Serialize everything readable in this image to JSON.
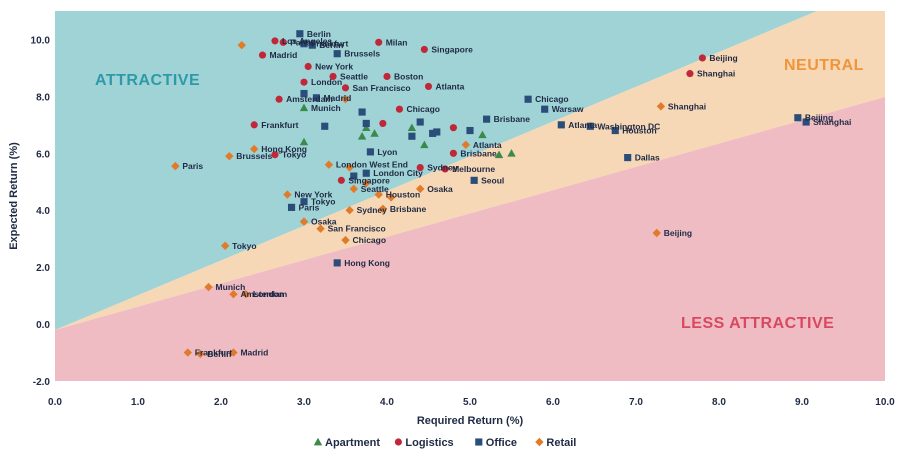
{
  "chart_data": {
    "type": "scatter",
    "title": "",
    "xlabel": "Required Return (%)",
    "ylabel": "Expected Return (%)",
    "xlim": [
      0,
      10
    ],
    "ylim": [
      -2,
      11
    ],
    "x_ticks": [
      "0.0",
      "1.0",
      "2.0",
      "3.0",
      "4.0",
      "5.0",
      "6.0",
      "7.0",
      "8.0",
      "9.0",
      "10.0"
    ],
    "y_ticks": [
      "-2.0",
      "0.0",
      "2.0",
      "4.0",
      "6.0",
      "8.0",
      "10.0"
    ],
    "grid": false,
    "legend_position": "bottom-center",
    "zones": [
      {
        "name": "ATTRACTIVE",
        "color": "#2e9aa8"
      },
      {
        "name": "NEUTRAL",
        "color": "#f0953a"
      },
      {
        "name": "LESS ATTRACTIVE",
        "color": "#d94860"
      }
    ],
    "series": [
      {
        "name": "Apartment",
        "color": "#3a8a4a",
        "marker": "triangle",
        "points": [
          {
            "x": 3.0,
            "y": 7.6,
            "label": "Munich"
          },
          {
            "x": 3.0,
            "y": 6.4,
            "label": ""
          },
          {
            "x": 3.7,
            "y": 6.6,
            "label": ""
          },
          {
            "x": 3.75,
            "y": 6.9,
            "label": ""
          },
          {
            "x": 3.85,
            "y": 6.7,
            "label": ""
          },
          {
            "x": 4.3,
            "y": 6.9,
            "label": ""
          },
          {
            "x": 4.45,
            "y": 6.3,
            "label": ""
          },
          {
            "x": 5.15,
            "y": 6.65,
            "label": ""
          },
          {
            "x": 5.35,
            "y": 5.95,
            "label": ""
          },
          {
            "x": 5.5,
            "y": 6.0,
            "label": ""
          }
        ]
      },
      {
        "name": "Logistics",
        "color": "#c0283a",
        "marker": "circle",
        "points": [
          {
            "x": 2.65,
            "y": 9.95,
            "label": "Los Angeles"
          },
          {
            "x": 2.75,
            "y": 9.9,
            "label": "Paris"
          },
          {
            "x": 2.5,
            "y": 9.45,
            "label": "Madrid"
          },
          {
            "x": 3.9,
            "y": 9.9,
            "label": "Milan"
          },
          {
            "x": 4.45,
            "y": 9.65,
            "label": "Singapore"
          },
          {
            "x": 3.05,
            "y": 9.05,
            "label": "New York"
          },
          {
            "x": 3.35,
            "y": 8.7,
            "label": "Seattle"
          },
          {
            "x": 4.0,
            "y": 8.7,
            "label": "Boston"
          },
          {
            "x": 3.0,
            "y": 8.5,
            "label": "London"
          },
          {
            "x": 3.5,
            "y": 8.3,
            "label": "San Francisco"
          },
          {
            "x": 4.5,
            "y": 8.35,
            "label": "Atlanta"
          },
          {
            "x": 2.7,
            "y": 7.9,
            "label": "Amsterdam"
          },
          {
            "x": 4.15,
            "y": 7.55,
            "label": "Chicago"
          },
          {
            "x": 2.4,
            "y": 7.0,
            "label": "Frankfurt"
          },
          {
            "x": 3.95,
            "y": 7.05,
            "label": ""
          },
          {
            "x": 4.8,
            "y": 6.9,
            "label": ""
          },
          {
            "x": 4.8,
            "y": 6.0,
            "label": "Brisbane"
          },
          {
            "x": 4.7,
            "y": 5.45,
            "label": "Melbourne"
          },
          {
            "x": 4.4,
            "y": 5.5,
            "label": "Sydney"
          },
          {
            "x": 2.65,
            "y": 5.95,
            "label": "Tokyo"
          },
          {
            "x": 3.45,
            "y": 5.05,
            "label": "Singapore"
          },
          {
            "x": 7.8,
            "y": 9.35,
            "label": "Beijing"
          },
          {
            "x": 7.65,
            "y": 8.8,
            "label": "Shanghai"
          }
        ]
      },
      {
        "name": "Office",
        "color": "#2a4d7a",
        "marker": "square",
        "points": [
          {
            "x": 2.95,
            "y": 10.2,
            "label": "Berlin"
          },
          {
            "x": 3.0,
            "y": 9.85,
            "label": "Frankfurt"
          },
          {
            "x": 3.1,
            "y": 9.8,
            "label": "Berlin"
          },
          {
            "x": 3.4,
            "y": 9.5,
            "label": "Brussels"
          },
          {
            "x": 3.0,
            "y": 8.1,
            "label": ""
          },
          {
            "x": 3.15,
            "y": 7.95,
            "label": "Madrid"
          },
          {
            "x": 3.75,
            "y": 7.05,
            "label": ""
          },
          {
            "x": 3.25,
            "y": 6.95,
            "label": ""
          },
          {
            "x": 3.7,
            "y": 7.45,
            "label": ""
          },
          {
            "x": 4.4,
            "y": 7.1,
            "label": ""
          },
          {
            "x": 4.3,
            "y": 6.6,
            "label": ""
          },
          {
            "x": 4.6,
            "y": 6.75,
            "label": ""
          },
          {
            "x": 4.55,
            "y": 6.7,
            "label": ""
          },
          {
            "x": 5.0,
            "y": 6.8,
            "label": ""
          },
          {
            "x": 5.2,
            "y": 7.2,
            "label": "Brisbane"
          },
          {
            "x": 5.7,
            "y": 7.9,
            "label": "Chicago"
          },
          {
            "x": 5.9,
            "y": 7.55,
            "label": "Warsaw"
          },
          {
            "x": 6.1,
            "y": 7.0,
            "label": "Atlanta"
          },
          {
            "x": 6.45,
            "y": 6.95,
            "label": "Washington DC"
          },
          {
            "x": 6.75,
            "y": 6.8,
            "label": "Houston"
          },
          {
            "x": 6.9,
            "y": 5.85,
            "label": "Dallas"
          },
          {
            "x": 8.95,
            "y": 7.25,
            "label": "Beijing"
          },
          {
            "x": 9.05,
            "y": 7.1,
            "label": "Shanghai"
          },
          {
            "x": 3.8,
            "y": 6.05,
            "label": "Lyon"
          },
          {
            "x": 3.75,
            "y": 5.3,
            "label": "London City"
          },
          {
            "x": 3.6,
            "y": 5.2,
            "label": ""
          },
          {
            "x": 5.05,
            "y": 5.05,
            "label": "Seoul"
          },
          {
            "x": 3.0,
            "y": 4.3,
            "label": "Tokyo"
          },
          {
            "x": 2.85,
            "y": 4.1,
            "label": "Paris"
          },
          {
            "x": 3.4,
            "y": 2.15,
            "label": "Hong Kong"
          }
        ]
      },
      {
        "name": "Retail",
        "color": "#e07b2a",
        "marker": "diamond",
        "points": [
          {
            "x": 2.25,
            "y": 9.8,
            "label": ""
          },
          {
            "x": 3.5,
            "y": 7.9,
            "label": ""
          },
          {
            "x": 1.45,
            "y": 5.55,
            "label": "Paris"
          },
          {
            "x": 2.1,
            "y": 5.9,
            "label": "Brussels"
          },
          {
            "x": 2.4,
            "y": 6.15,
            "label": "Hong Kong"
          },
          {
            "x": 3.3,
            "y": 5.6,
            "label": "London West End"
          },
          {
            "x": 3.55,
            "y": 5.5,
            "label": ""
          },
          {
            "x": 4.95,
            "y": 6.3,
            "label": "Atlanta"
          },
          {
            "x": 3.6,
            "y": 4.75,
            "label": "Seattle"
          },
          {
            "x": 3.75,
            "y": 4.95,
            "label": ""
          },
          {
            "x": 3.9,
            "y": 4.55,
            "label": "Houston"
          },
          {
            "x": 4.05,
            "y": 4.45,
            "label": ""
          },
          {
            "x": 2.8,
            "y": 4.55,
            "label": "New York"
          },
          {
            "x": 3.55,
            "y": 4.0,
            "label": "Sydney"
          },
          {
            "x": 3.95,
            "y": 4.05,
            "label": "Brisbane"
          },
          {
            "x": 4.4,
            "y": 4.75,
            "label": "Osaka"
          },
          {
            "x": 3.0,
            "y": 3.6,
            "label": "Osaka"
          },
          {
            "x": 3.2,
            "y": 3.35,
            "label": "San Francisco"
          },
          {
            "x": 3.5,
            "y": 2.95,
            "label": "Chicago"
          },
          {
            "x": 2.05,
            "y": 2.75,
            "label": "Tokyo"
          },
          {
            "x": 7.3,
            "y": 7.65,
            "label": "Shanghai"
          },
          {
            "x": 7.25,
            "y": 3.2,
            "label": "Beijing"
          },
          {
            "x": 1.85,
            "y": 1.3,
            "label": "Munich"
          },
          {
            "x": 2.15,
            "y": 1.05,
            "label": "Amsterdam"
          },
          {
            "x": 2.3,
            "y": 1.05,
            "label": "London"
          },
          {
            "x": 1.6,
            "y": -1.0,
            "label": "Frankfurt"
          },
          {
            "x": 1.75,
            "y": -1.05,
            "label": "Berlin"
          },
          {
            "x": 2.15,
            "y": -1.0,
            "label": "Madrid"
          }
        ]
      }
    ]
  }
}
